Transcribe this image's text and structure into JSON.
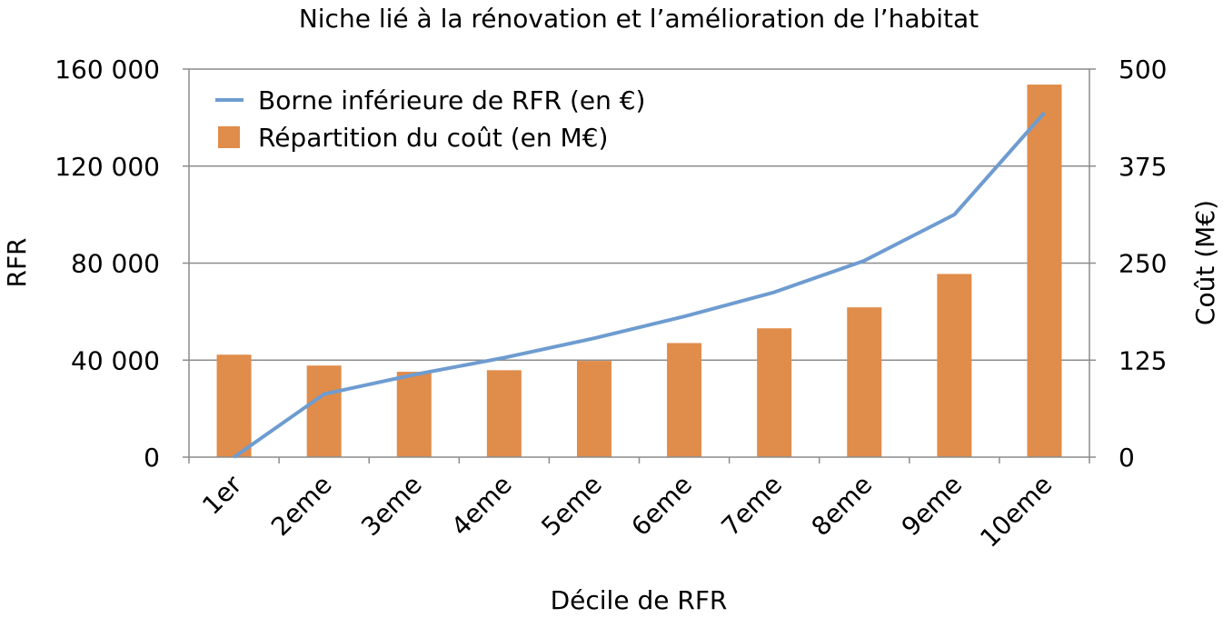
{
  "chart_data": {
    "type": "bar",
    "title": "Niche lié à la rénovation et l’amélioration de l’habitat",
    "xlabel": "Décile de RFR",
    "ylabel": "RFR",
    "y2label": "Coût (M€)",
    "categories": [
      "1er",
      "2eme",
      "3eme",
      "4eme",
      "5eme",
      "6eme",
      "7eme",
      "8eme",
      "9eme",
      "10eme"
    ],
    "ylim": [
      0,
      160000
    ],
    "yticks": [
      0,
      40000,
      80000,
      120000,
      160000
    ],
    "ytick_labels": [
      "0",
      "40 000",
      "80 000",
      "120 000",
      "160 000"
    ],
    "y2lim": [
      0,
      500
    ],
    "y2ticks": [
      0,
      125,
      250,
      375,
      500
    ],
    "y2tick_labels": [
      "0",
      "125",
      "250",
      "375",
      "500"
    ],
    "grid": true,
    "legend_position": "top-left",
    "series": [
      {
        "name": "Borne inférieure de RFR (en €)",
        "type": "line",
        "axis": "left",
        "color": "#6e9cd0",
        "values": [
          0,
          26000,
          34000,
          41000,
          49000,
          58000,
          68000,
          81000,
          100000,
          142000
        ]
      },
      {
        "name": "Répartition du coût (en M€)",
        "type": "bar",
        "axis": "right",
        "color": "#e08c4a",
        "values": [
          132,
          118,
          110,
          112,
          124,
          147,
          166,
          193,
          236,
          480
        ]
      }
    ]
  }
}
